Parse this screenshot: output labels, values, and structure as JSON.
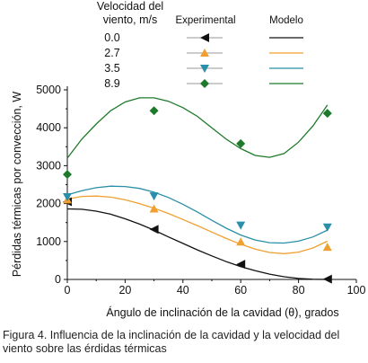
{
  "chart_data": {
    "type": "line",
    "legend_placement": "top",
    "legend": {
      "group_title": "Velocidad del viento, m/s",
      "col_experimental": "Experimental",
      "col_model": "Modelo"
    },
    "xlabel": "Ángulo de inclinación de la cavidad (θ), grados",
    "ylabel": "Pérdidas térmicas por convección, W",
    "xlim": [
      0,
      100
    ],
    "ylim": [
      0,
      5000
    ],
    "xticks": [
      0,
      20,
      40,
      60,
      80,
      100
    ],
    "yticks": [
      0,
      1000,
      2000,
      3000,
      4000,
      5000
    ],
    "grid": false,
    "series": [
      {
        "name": "0.0",
        "color": "#111111",
        "marker": "triangle-left",
        "experimental": {
          "x": [
            0,
            30,
            60,
            90
          ],
          "y": [
            2050,
            1320,
            400,
            10
          ]
        },
        "model": {
          "x": [
            0,
            5,
            10,
            15,
            20,
            25,
            30,
            35,
            40,
            45,
            50,
            55,
            60,
            65,
            70,
            75,
            80,
            85,
            90
          ],
          "y": [
            1860,
            1850,
            1800,
            1720,
            1600,
            1460,
            1300,
            1120,
            950,
            780,
            620,
            470,
            340,
            230,
            140,
            70,
            25,
            5,
            0
          ]
        }
      },
      {
        "name": "2.7",
        "color": "#f0a030",
        "marker": "triangle-up",
        "experimental": {
          "x": [
            0,
            30,
            60,
            90
          ],
          "y": [
            2100,
            1860,
            990,
            850
          ]
        },
        "model": {
          "x": [
            0,
            5,
            10,
            15,
            20,
            25,
            30,
            35,
            40,
            45,
            50,
            55,
            60,
            65,
            70,
            75,
            80,
            85,
            90
          ],
          "y": [
            2120,
            2190,
            2200,
            2170,
            2100,
            2000,
            1880,
            1740,
            1580,
            1420,
            1250,
            1080,
            930,
            800,
            710,
            680,
            720,
            830,
            1010
          ]
        }
      },
      {
        "name": "3.5",
        "color": "#2a8fa8",
        "marker": "triangle-down",
        "experimental": {
          "x": [
            0,
            30,
            60,
            90
          ],
          "y": [
            2180,
            2200,
            1430,
            1380
          ]
        },
        "model": {
          "x": [
            0,
            5,
            10,
            15,
            20,
            25,
            30,
            35,
            40,
            45,
            50,
            55,
            60,
            65,
            70,
            75,
            80,
            85,
            90
          ],
          "y": [
            2230,
            2340,
            2420,
            2460,
            2450,
            2400,
            2300,
            2160,
            1980,
            1780,
            1560,
            1350,
            1170,
            1040,
            970,
            960,
            1010,
            1120,
            1300
          ]
        }
      },
      {
        "name": "8.9",
        "color": "#1e7a2a",
        "marker": "diamond",
        "experimental": {
          "x": [
            0,
            30,
            60,
            90
          ],
          "y": [
            2770,
            4450,
            3580,
            4380
          ]
        },
        "model": {
          "x": [
            0,
            5,
            10,
            15,
            20,
            25,
            30,
            35,
            40,
            45,
            50,
            55,
            60,
            65,
            70,
            75,
            80,
            85,
            90
          ],
          "y": [
            3200,
            3700,
            4100,
            4450,
            4680,
            4790,
            4790,
            4700,
            4530,
            4300,
            4000,
            3700,
            3450,
            3270,
            3220,
            3320,
            3620,
            4050,
            4600
          ]
        }
      }
    ]
  },
  "caption": "Figura 4. Influencia de la inclinación de la cavidad y la velocidad del viento sobre las érdidas térmicas"
}
